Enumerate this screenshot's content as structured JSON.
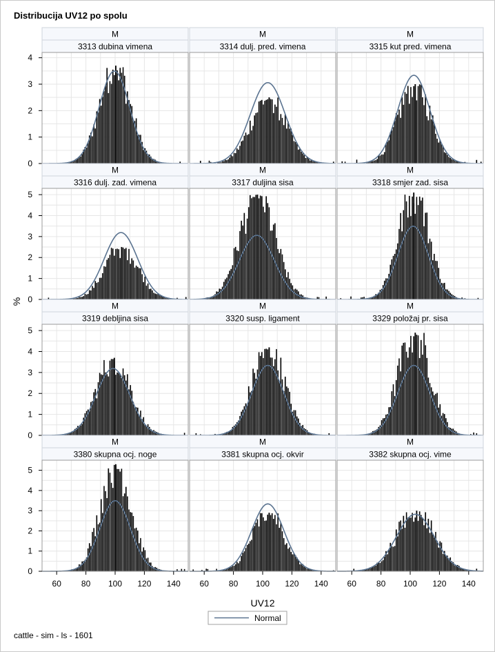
{
  "title": "Distribucija UV12 po spolu",
  "footer": "cattle - sim - ls - 1601",
  "legend": {
    "label": "Normal"
  },
  "colors": {
    "bar": "#000000",
    "curve": "#5a7390",
    "grid": "#e6e6e6",
    "strip_bg": "#f6f8fc",
    "panel_border": "#9a9a9a"
  },
  "chart_data": {
    "type": "histogram-panel",
    "xlabel": "UV12",
    "ylabel": "%",
    "xlim": [
      50,
      150
    ],
    "xticks": [
      60,
      80,
      100,
      120,
      140
    ],
    "grid": true,
    "legend_position": "bottom-center",
    "row_ylims": [
      [
        0,
        4.2
      ],
      [
        0,
        5.3
      ],
      [
        0,
        5.3
      ],
      [
        0,
        5.5
      ]
    ],
    "row_yticks": [
      [
        0,
        1,
        2,
        3,
        4
      ],
      [
        0,
        1,
        2,
        3,
        4,
        5
      ],
      [
        0,
        1,
        2,
        3,
        4,
        5
      ],
      [
        0,
        1,
        2,
        3,
        4,
        5
      ]
    ],
    "panels": [
      {
        "sex": "M",
        "label": "3313 dubina vimena",
        "mean": 99.5,
        "sd": 10.5,
        "peak": 3.7
      },
      {
        "sex": "M",
        "label": "3314 dulj. pred. vimena",
        "mean": 103.5,
        "sd": 12.0,
        "peak": 2.5
      },
      {
        "sex": "M",
        "label": "3315 kut pred. vimena",
        "mean": 102.5,
        "sd": 11.0,
        "peak": 3.0
      },
      {
        "sex": "M",
        "label": "3316 dulj. zad. vimena",
        "mean": 104.0,
        "sd": 11.5,
        "peak": 2.5
      },
      {
        "sex": "M",
        "label": "3317 duljina sisa",
        "mean": 96.0,
        "sd": 12.0,
        "peak": 5.0
      },
      {
        "sex": "M",
        "label": "3318 smjer zad. sisa",
        "mean": 102.0,
        "sd": 10.5,
        "peak": 5.1
      },
      {
        "sex": "M",
        "label": "3319 debljina sisa",
        "mean": 98.5,
        "sd": 11.5,
        "peak": 3.7
      },
      {
        "sex": "M",
        "label": "3320 susp. ligament",
        "mean": 103.5,
        "sd": 11.0,
        "peak": 4.2
      },
      {
        "sex": "M",
        "label": "3329 položaj pr. sisa",
        "mean": 102.5,
        "sd": 11.0,
        "peak": 4.9
      },
      {
        "sex": "M",
        "label": "3380 skupna ocj. noge",
        "mean": 100.0,
        "sd": 10.5,
        "peak": 5.3
      },
      {
        "sex": "M",
        "label": "3381 skupna ocj. okvir",
        "mean": 103.5,
        "sd": 11.0,
        "peak": 2.9
      },
      {
        "sex": "M",
        "label": "3382 skupna ocj. vime",
        "mean": 103.5,
        "sd": 13.0,
        "peak": 3.0
      }
    ]
  }
}
